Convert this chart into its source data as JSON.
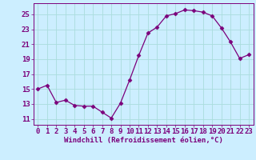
{
  "x": [
    0,
    1,
    2,
    3,
    4,
    5,
    6,
    7,
    8,
    9,
    10,
    11,
    12,
    13,
    14,
    15,
    16,
    17,
    18,
    19,
    20,
    21,
    22,
    23
  ],
  "y": [
    15.0,
    15.5,
    13.2,
    13.5,
    12.8,
    12.7,
    12.7,
    11.9,
    11.1,
    13.1,
    16.2,
    19.5,
    22.5,
    23.3,
    24.8,
    25.1,
    25.6,
    25.5,
    25.3,
    24.8,
    23.2,
    21.3,
    19.1,
    19.6
  ],
  "line_color": "#7B007B",
  "marker": "D",
  "marker_size": 2.5,
  "background_color": "#cceeff",
  "grid_color": "#aadddd",
  "xlabel": "Windchill (Refroidissement éolien,°C)",
  "xlabel_fontsize": 6.5,
  "ylabel_ticks": [
    11,
    13,
    15,
    17,
    19,
    21,
    23,
    25
  ],
  "xlim": [
    -0.5,
    23.5
  ],
  "ylim": [
    10.2,
    26.5
  ],
  "tick_fontsize": 6.5,
  "title": ""
}
